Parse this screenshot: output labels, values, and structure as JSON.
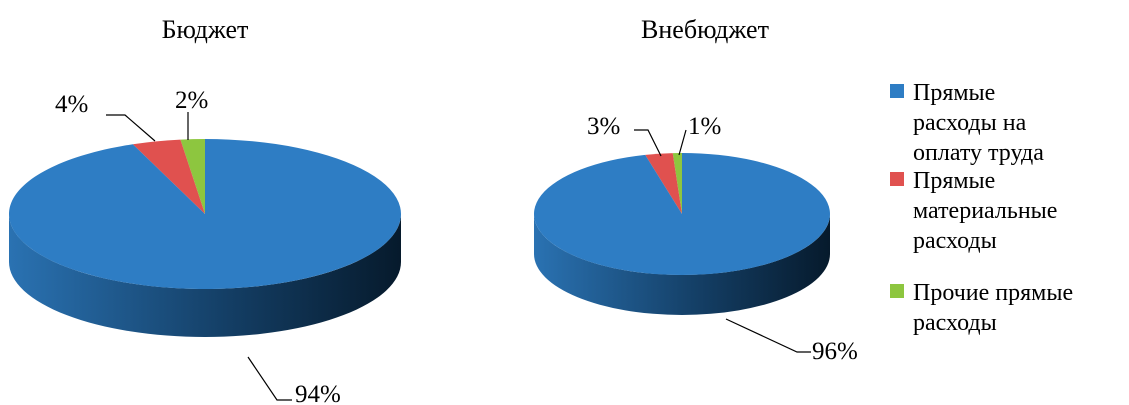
{
  "chart_data": [
    {
      "type": "pie",
      "title": "Бюджет",
      "categories": [
        "Прямые расходы на оплату труда",
        "Прямые материальные расходы",
        "Прочие прямые расходы"
      ],
      "values": [
        94,
        4,
        2
      ],
      "labels": [
        "94%",
        "4%",
        "2%"
      ]
    },
    {
      "type": "pie",
      "title": "Внебюджет",
      "categories": [
        "Прямые расходы на оплату труда",
        "Прямые материальные расходы",
        "Прочие прямые расходы"
      ],
      "values": [
        96,
        3,
        1
      ],
      "labels": [
        "96%",
        "3%",
        "1%"
      ]
    }
  ],
  "legend": {
    "placement": "right",
    "items": [
      {
        "lines": [
          "Прямые",
          "расходы на",
          "оплату труда"
        ],
        "color": "#2E7DC4"
      },
      {
        "lines": [
          "Прямые",
          "материальные",
          "расходы"
        ],
        "color": "#E0514F"
      },
      {
        "lines": [
          "Прочие прямые",
          "расходы"
        ],
        "color": "#8DC63F"
      }
    ]
  },
  "colors": {
    "series": [
      "#2E7DC4",
      "#E0514F",
      "#8DC63F"
    ],
    "series_dark": [
      "#0E2F4C",
      "#6A1A18",
      "#3C5A16"
    ]
  }
}
